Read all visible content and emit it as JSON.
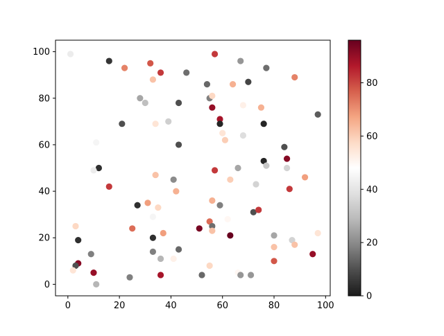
{
  "chart_data": {
    "type": "scatter",
    "title": "",
    "xlabel": "",
    "ylabel": "",
    "xlim": [
      -4.8,
      101.8
    ],
    "ylim": [
      -4.95,
      104.95
    ],
    "xticks": [
      0,
      20,
      40,
      60,
      80,
      100
    ],
    "yticks": [
      0,
      20,
      40,
      60,
      80,
      100
    ],
    "grid": false,
    "colormap": "RdGy_r",
    "colorbar": {
      "min": 0,
      "max": 96,
      "ticks": [
        0,
        20,
        40,
        60,
        80
      ]
    },
    "points": [
      {
        "x": 1,
        "y": 99,
        "c": 42
      },
      {
        "x": 16,
        "y": 96,
        "c": 5
      },
      {
        "x": 22,
        "y": 93,
        "c": 72
      },
      {
        "x": 32,
        "y": 95,
        "c": 78
      },
      {
        "x": 36,
        "y": 91,
        "c": 82
      },
      {
        "x": 46,
        "y": 91,
        "c": 15
      },
      {
        "x": 57,
        "y": 99,
        "c": 82
      },
      {
        "x": 67,
        "y": 96,
        "c": 22
      },
      {
        "x": 77,
        "y": 93,
        "c": 15
      },
      {
        "x": 88,
        "y": 89,
        "c": 72
      },
      {
        "x": 33,
        "y": 88,
        "c": 62
      },
      {
        "x": 28,
        "y": 80,
        "c": 25
      },
      {
        "x": 30,
        "y": 78,
        "c": 30
      },
      {
        "x": 43,
        "y": 78,
        "c": 10
      },
      {
        "x": 54,
        "y": 86,
        "c": 14
      },
      {
        "x": 55,
        "y": 80,
        "c": 18
      },
      {
        "x": 56,
        "y": 81,
        "c": 58
      },
      {
        "x": 56,
        "y": 76,
        "c": 90
      },
      {
        "x": 64,
        "y": 86,
        "c": 65
      },
      {
        "x": 70,
        "y": 87,
        "c": 8
      },
      {
        "x": 68,
        "y": 77,
        "c": 52
      },
      {
        "x": 75,
        "y": 76,
        "c": 65
      },
      {
        "x": 59,
        "y": 71,
        "c": 88
      },
      {
        "x": 59,
        "y": 69,
        "c": 2
      },
      {
        "x": 34,
        "y": 69,
        "c": 55
      },
      {
        "x": 39,
        "y": 70,
        "c": 34
      },
      {
        "x": 21,
        "y": 69,
        "c": 10
      },
      {
        "x": 60,
        "y": 65,
        "c": 55
      },
      {
        "x": 61,
        "y": 62,
        "c": 60
      },
      {
        "x": 68,
        "y": 64,
        "c": 38
      },
      {
        "x": 76,
        "y": 69,
        "c": 2
      },
      {
        "x": 97,
        "y": 73,
        "c": 12
      },
      {
        "x": 11,
        "y": 61,
        "c": 45
      },
      {
        "x": 43,
        "y": 60,
        "c": 10
      },
      {
        "x": 84,
        "y": 59,
        "c": 10
      },
      {
        "x": 85,
        "y": 54,
        "c": 92
      },
      {
        "x": 76,
        "y": 53,
        "c": 2
      },
      {
        "x": 12,
        "y": 50,
        "c": 4
      },
      {
        "x": 10,
        "y": 49,
        "c": 42
      },
      {
        "x": 31,
        "y": 46,
        "c": 48
      },
      {
        "x": 34,
        "y": 47,
        "c": 62
      },
      {
        "x": 41,
        "y": 45,
        "c": 20
      },
      {
        "x": 57,
        "y": 49,
        "c": 82
      },
      {
        "x": 66,
        "y": 50,
        "c": 25
      },
      {
        "x": 77,
        "y": 51,
        "c": 32
      },
      {
        "x": 85,
        "y": 50,
        "c": 35
      },
      {
        "x": 92,
        "y": 46,
        "c": 68
      },
      {
        "x": 63,
        "y": 45,
        "c": 60
      },
      {
        "x": 73,
        "y": 43,
        "c": 35
      },
      {
        "x": 86,
        "y": 41,
        "c": 82
      },
      {
        "x": 16,
        "y": 42,
        "c": 82
      },
      {
        "x": 42,
        "y": 40,
        "c": 65
      },
      {
        "x": 27,
        "y": 34,
        "c": 4
      },
      {
        "x": 31,
        "y": 35,
        "c": 68
      },
      {
        "x": 35,
        "y": 33,
        "c": 58
      },
      {
        "x": 56,
        "y": 36,
        "c": 65
      },
      {
        "x": 59,
        "y": 34,
        "c": 18
      },
      {
        "x": 72,
        "y": 31,
        "c": 10
      },
      {
        "x": 74,
        "y": 32,
        "c": 82
      },
      {
        "x": 33,
        "y": 29,
        "c": 45
      },
      {
        "x": 62,
        "y": 28,
        "c": 50
      },
      {
        "x": 55,
        "y": 27,
        "c": 75
      },
      {
        "x": 56,
        "y": 25,
        "c": 15
      },
      {
        "x": 56,
        "y": 23,
        "c": 62
      },
      {
        "x": 51,
        "y": 24,
        "c": 94
      },
      {
        "x": 25,
        "y": 24,
        "c": 75
      },
      {
        "x": 37,
        "y": 22,
        "c": 68
      },
      {
        "x": 33,
        "y": 20,
        "c": 4
      },
      {
        "x": 3,
        "y": 25,
        "c": 58
      },
      {
        "x": 4,
        "y": 19,
        "c": 4
      },
      {
        "x": 63,
        "y": 21,
        "c": 96
      },
      {
        "x": 80,
        "y": 21,
        "c": 25
      },
      {
        "x": 87,
        "y": 19,
        "c": 35
      },
      {
        "x": 97,
        "y": 22,
        "c": 55
      },
      {
        "x": 80,
        "y": 16,
        "c": 62
      },
      {
        "x": 88,
        "y": 17,
        "c": 62
      },
      {
        "x": 43,
        "y": 15,
        "c": 14
      },
      {
        "x": 33,
        "y": 14,
        "c": 18
      },
      {
        "x": 36,
        "y": 11,
        "c": 28
      },
      {
        "x": 41,
        "y": 11,
        "c": 52
      },
      {
        "x": 9,
        "y": 13,
        "c": 18
      },
      {
        "x": 95,
        "y": 13,
        "c": 90
      },
      {
        "x": 80,
        "y": 10,
        "c": 78
      },
      {
        "x": 4,
        "y": 9,
        "c": 92
      },
      {
        "x": 3,
        "y": 8,
        "c": 10
      },
      {
        "x": 2,
        "y": 6,
        "c": 55
      },
      {
        "x": 10,
        "y": 5,
        "c": 90
      },
      {
        "x": 55,
        "y": 8,
        "c": 58
      },
      {
        "x": 66,
        "y": 5,
        "c": 50
      },
      {
        "x": 67,
        "y": 4,
        "c": 22
      },
      {
        "x": 71,
        "y": 4,
        "c": 22
      },
      {
        "x": 52,
        "y": 4,
        "c": 14
      },
      {
        "x": 36,
        "y": 4,
        "c": 88
      },
      {
        "x": 24,
        "y": 3,
        "c": 18
      },
      {
        "x": 11,
        "y": 0,
        "c": 28
      }
    ]
  }
}
